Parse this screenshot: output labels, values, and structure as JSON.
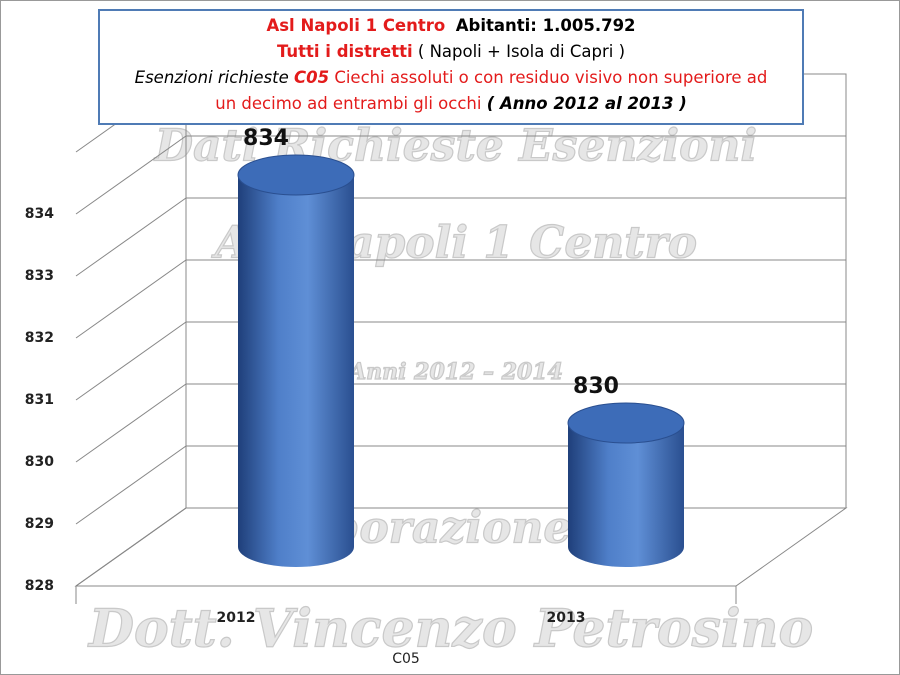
{
  "chart_data": {
    "type": "cylinder",
    "title": [
      [
        "Asl Napoli 1 Centro",
        "Abitanti: 1.005.792"
      ],
      [
        "Tutti i distretti",
        "( Napoli + Isola di Capri )"
      ],
      [
        "Esenzioni richieste",
        "C05",
        "Ciechi assoluti o con residuo visivo non superiore ad"
      ],
      [
        "un decimo ad entrambi gli occhi",
        "( Anno 2012 al 2013 )"
      ]
    ],
    "watermark": [
      "Dati Richieste Esenzioni",
      "Asl Napoli 1 Centro",
      "Anni 2012 – 2014",
      "Elaborazione del",
      "Dott. Vincenzo Petrosino"
    ],
    "x_label": "C05",
    "categories": [
      "2012",
      "2013"
    ],
    "values": [
      834,
      830
    ],
    "color": "#4472c4",
    "ylim": [
      828,
      835
    ],
    "yticks": [
      828,
      829,
      830,
      831,
      832,
      833,
      834
    ],
    "grid": true
  }
}
